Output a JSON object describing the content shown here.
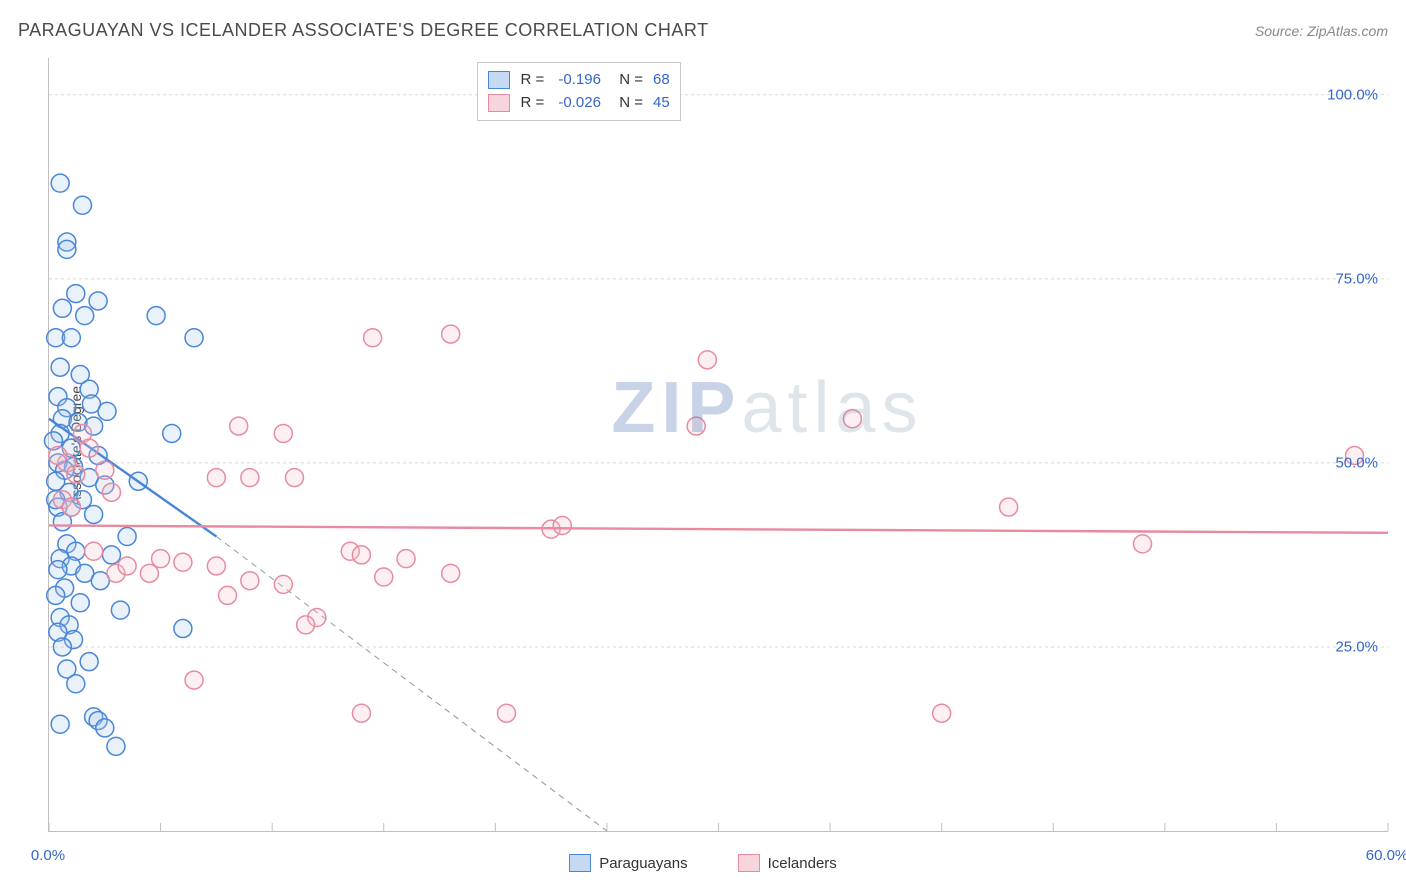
{
  "header": {
    "title": "PARAGUAYAN VS ICELANDER ASSOCIATE'S DEGREE CORRELATION CHART",
    "source": "Source: ZipAtlas.com"
  },
  "y_axis_label": "Associate's Degree",
  "chart": {
    "type": "scatter",
    "xlim": [
      0,
      60
    ],
    "ylim": [
      0,
      105
    ],
    "x_ticks": [
      0,
      5,
      10,
      15,
      20,
      25,
      30,
      35,
      40,
      45,
      50,
      55,
      60
    ],
    "x_tick_labels_shown": {
      "0": "0.0%",
      "60": "60.0%"
    },
    "y_gridlines": [
      25,
      50,
      75,
      100
    ],
    "y_tick_labels": {
      "25": "25.0%",
      "50": "50.0%",
      "75": "75.0%",
      "100": "100.0%"
    },
    "grid_color": "#d8d8d8",
    "grid_dash": "3,3",
    "axis_color": "#bfbfbf",
    "background_color": "#ffffff",
    "point_radius": 9,
    "point_stroke_width": 1.5,
    "point_fill_opacity": 0.25,
    "line_width_solid": 2.4,
    "line_width_dash": 1,
    "dash_pattern": "6,5",
    "series": [
      {
        "name": "Paraguayans",
        "color_stroke": "#4a86d8",
        "color_fill": "#a9c6ec",
        "points": [
          [
            0.5,
            88
          ],
          [
            1.5,
            85
          ],
          [
            0.8,
            80
          ],
          [
            0.8,
            79
          ],
          [
            1.2,
            73
          ],
          [
            2.2,
            72
          ],
          [
            0.6,
            71
          ],
          [
            1.6,
            70
          ],
          [
            4.8,
            70
          ],
          [
            0.3,
            67
          ],
          [
            1.0,
            67
          ],
          [
            6.5,
            67
          ],
          [
            0.5,
            63
          ],
          [
            1.4,
            62
          ],
          [
            1.8,
            60
          ],
          [
            0.4,
            59
          ],
          [
            1.9,
            58
          ],
          [
            0.8,
            57.5
          ],
          [
            2.6,
            57
          ],
          [
            0.6,
            56
          ],
          [
            1.3,
            55.5
          ],
          [
            2.0,
            55
          ],
          [
            0.5,
            54
          ],
          [
            5.5,
            54
          ],
          [
            0.2,
            53
          ],
          [
            1.0,
            52
          ],
          [
            2.2,
            51
          ],
          [
            0.4,
            50
          ],
          [
            1.1,
            49.5
          ],
          [
            0.7,
            49
          ],
          [
            1.8,
            48
          ],
          [
            0.3,
            47.5
          ],
          [
            4.0,
            47.5
          ],
          [
            2.5,
            47
          ],
          [
            0.9,
            46
          ],
          [
            1.5,
            45
          ],
          [
            0.4,
            44
          ],
          [
            2.0,
            43
          ],
          [
            0.6,
            42
          ],
          [
            3.5,
            40
          ],
          [
            0.8,
            39
          ],
          [
            1.2,
            38
          ],
          [
            2.8,
            37.5
          ],
          [
            0.5,
            37
          ],
          [
            1.0,
            36
          ],
          [
            0.4,
            35.5
          ],
          [
            1.6,
            35
          ],
          [
            2.3,
            34
          ],
          [
            0.7,
            33
          ],
          [
            0.3,
            32
          ],
          [
            1.4,
            31
          ],
          [
            3.2,
            30
          ],
          [
            0.5,
            29
          ],
          [
            0.9,
            28
          ],
          [
            6.0,
            27.5
          ],
          [
            0.4,
            27
          ],
          [
            1.1,
            26
          ],
          [
            0.6,
            25
          ],
          [
            1.8,
            23
          ],
          [
            0.8,
            22
          ],
          [
            2.0,
            15.5
          ],
          [
            2.2,
            15
          ],
          [
            2.5,
            14
          ],
          [
            0.5,
            14.5
          ],
          [
            3.0,
            11.5
          ],
          [
            1.2,
            20
          ],
          [
            0.3,
            45
          ],
          [
            1.0,
            44
          ]
        ],
        "trend_solid": {
          "x1": 0,
          "y1": 56,
          "x2": 7.5,
          "y2": 40
        },
        "trend_dash": {
          "x1": 7.5,
          "y1": 40,
          "x2": 25,
          "y2": 0
        }
      },
      {
        "name": "Icelanders",
        "color_stroke": "#e88ba0",
        "color_fill": "#f5c2cd",
        "points": [
          [
            14.5,
            67
          ],
          [
            18,
            67.5
          ],
          [
            29.5,
            64
          ],
          [
            8.5,
            55
          ],
          [
            10.5,
            54
          ],
          [
            7.5,
            48
          ],
          [
            9,
            48
          ],
          [
            11,
            48
          ],
          [
            58.5,
            51
          ],
          [
            43,
            44
          ],
          [
            22.5,
            41
          ],
          [
            23,
            41.5
          ],
          [
            49,
            39
          ],
          [
            13.5,
            38
          ],
          [
            14,
            37.5
          ],
          [
            5,
            37
          ],
          [
            6,
            36.5
          ],
          [
            16,
            37
          ],
          [
            18,
            35
          ],
          [
            15,
            34.5
          ],
          [
            7.5,
            36
          ],
          [
            4.5,
            35
          ],
          [
            3,
            35
          ],
          [
            9,
            34
          ],
          [
            10.5,
            33.5
          ],
          [
            12,
            29
          ],
          [
            8,
            32
          ],
          [
            11.5,
            28
          ],
          [
            6.5,
            20.5
          ],
          [
            14,
            16
          ],
          [
            20.5,
            16
          ],
          [
            40,
            16
          ],
          [
            1.5,
            54
          ],
          [
            1.8,
            52
          ],
          [
            0.8,
            50
          ],
          [
            2.5,
            49
          ],
          [
            1.2,
            48.5
          ],
          [
            2.8,
            46
          ],
          [
            0.6,
            45
          ],
          [
            1.0,
            44
          ],
          [
            2.0,
            38
          ],
          [
            3.5,
            36
          ],
          [
            0.4,
            51
          ],
          [
            29,
            55
          ],
          [
            36,
            56
          ]
        ],
        "trend_solid": {
          "x1": 0,
          "y1": 41.5,
          "x2": 60,
          "y2": 40.5
        },
        "trend_dash": null
      }
    ]
  },
  "stats_box": {
    "rows": [
      {
        "swatch_fill": "#c5d9f2",
        "swatch_border": "#4a86d8",
        "r_label": "R =",
        "r_value": "-0.196",
        "n_label": "N =",
        "n_value": "68"
      },
      {
        "swatch_fill": "#f8d5dd",
        "swatch_border": "#e88ba0",
        "r_label": "R =",
        "r_value": "-0.026",
        "n_label": "N =",
        "n_value": "45"
      }
    ]
  },
  "bottom_legend": [
    {
      "swatch_fill": "#c5d9f2",
      "swatch_border": "#4a86d8",
      "label": "Paraguayans"
    },
    {
      "swatch_fill": "#f8d5dd",
      "swatch_border": "#e88ba0",
      "label": "Icelanders"
    }
  ],
  "watermark": {
    "zip": "ZIP",
    "atlas": "atlas"
  },
  "colors": {
    "tick_label": "#3366cc",
    "title": "#4a4a4a",
    "source": "#888888"
  }
}
